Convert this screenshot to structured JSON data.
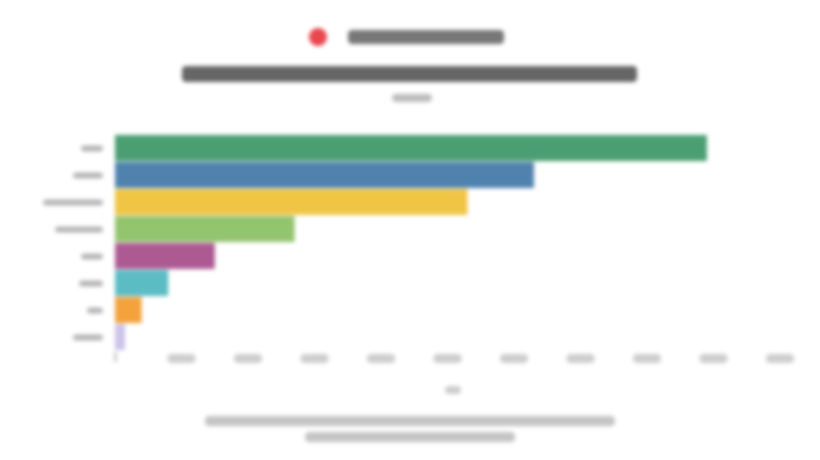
{
  "header": {
    "logo_text": "",
    "title": "",
    "subtitle": ""
  },
  "chart_data": {
    "type": "bar",
    "orientation": "horizontal",
    "title": "",
    "xlabel": "",
    "ylabel": "",
    "categories": [
      "",
      "",
      "",
      "",
      "",
      "",
      "",
      ""
    ],
    "values": [
      8.9,
      6.3,
      5.3,
      2.7,
      1.5,
      0.8,
      0.4,
      0.15
    ],
    "colors": [
      "#4a9e72",
      "#4f82ad",
      "#f0c545",
      "#93c46e",
      "#ad5a92",
      "#5bbcc4",
      "#f3a23c",
      "#cbc4e8"
    ],
    "xlim": [
      0,
      10
    ],
    "ticks": [
      "",
      "",
      "",
      "",
      "",
      "",
      "",
      "",
      "",
      "",
      ""
    ],
    "grid": false,
    "legend": "none"
  },
  "footer": {
    "note_line1": "",
    "note_line2": ""
  }
}
